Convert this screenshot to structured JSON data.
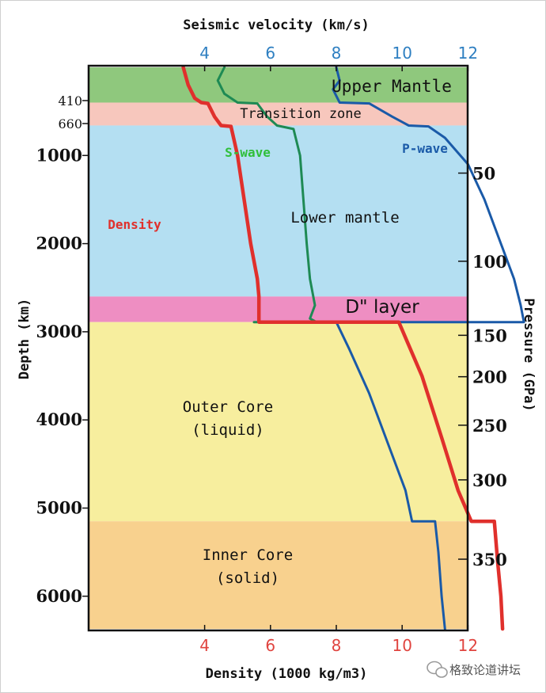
{
  "chart_data": {
    "type": "line",
    "top_axis": {
      "label": "Seismic velocity (km/s)",
      "ticks": [
        4,
        6,
        8,
        10,
        12
      ],
      "range": [
        2.5,
        14.0
      ]
    },
    "bottom_axis": {
      "label": "Density (1000 kg/m3)",
      "ticks": [
        4,
        6,
        8,
        10,
        12
      ],
      "range": [
        2.5,
        14.0
      ]
    },
    "left_axis": {
      "label": "Depth (km)",
      "ticks": [
        1000,
        2000,
        3000,
        4000,
        5000,
        6000
      ],
      "minor_ticks": [
        410,
        660
      ],
      "range": [
        0,
        6371
      ]
    },
    "right_axis": {
      "label": "Pressure (GPa)",
      "ticks": [
        {
          "value": 50,
          "depth": 1200
        },
        {
          "value": 100,
          "depth": 2200
        },
        {
          "value": 150,
          "depth": 3040
        },
        {
          "value": 200,
          "depth": 3510
        },
        {
          "value": 250,
          "depth": 4060
        },
        {
          "value": 300,
          "depth": 4680
        },
        {
          "value": 350,
          "depth": 5580
        }
      ]
    },
    "layers": [
      {
        "name": "Upper Mantle",
        "top": 0,
        "bottom": 400,
        "color": "#8fc87d"
      },
      {
        "name": "Transition zone",
        "top": 400,
        "bottom": 660,
        "color": "#f7c7bd"
      },
      {
        "name": "Lower mantle",
        "top": 660,
        "bottom": 2600,
        "color": "#b4dff2"
      },
      {
        "name": "D\" layer",
        "top": 2600,
        "bottom": 2890,
        "color": "#ee8ec2"
      },
      {
        "name": "Outer Core\n(liquid)",
        "top": 2890,
        "bottom": 5150,
        "color": "#f7ee9e"
      },
      {
        "name": "Inner Core\n(solid)",
        "top": 5150,
        "bottom": 6371,
        "color": "#f8d18e"
      }
    ],
    "series": [
      {
        "name": "P-wave",
        "axis": "top",
        "color": "#1a5aa8",
        "points": [
          [
            8.0,
            0
          ],
          [
            8.1,
            150
          ],
          [
            7.9,
            250
          ],
          [
            8.1,
            400
          ],
          [
            9.0,
            410
          ],
          [
            9.7,
            560
          ],
          [
            10.2,
            660
          ],
          [
            10.8,
            670
          ],
          [
            11.3,
            800
          ],
          [
            12.0,
            1100
          ],
          [
            12.5,
            1500
          ],
          [
            13.0,
            2000
          ],
          [
            13.4,
            2400
          ],
          [
            13.6,
            2700
          ],
          [
            13.7,
            2890
          ],
          [
            8.0,
            2890
          ],
          [
            8.4,
            3200
          ],
          [
            9.0,
            3700
          ],
          [
            9.6,
            4300
          ],
          [
            10.1,
            4800
          ],
          [
            10.3,
            5150
          ],
          [
            11.0,
            5150
          ],
          [
            11.1,
            5500
          ],
          [
            11.2,
            6000
          ],
          [
            11.3,
            6371
          ]
        ]
      },
      {
        "name": "S-wave",
        "axis": "top",
        "color": "#1e8a54",
        "points": [
          [
            4.6,
            0
          ],
          [
            4.4,
            150
          ],
          [
            4.6,
            300
          ],
          [
            5.0,
            400
          ],
          [
            5.6,
            410
          ],
          [
            5.9,
            560
          ],
          [
            6.2,
            660
          ],
          [
            6.7,
            700
          ],
          [
            6.9,
            1000
          ],
          [
            7.0,
            1500
          ],
          [
            7.1,
            2000
          ],
          [
            7.2,
            2400
          ],
          [
            7.3,
            2600
          ],
          [
            7.35,
            2700
          ],
          [
            7.2,
            2850
          ],
          [
            7.4,
            2890
          ],
          [
            5.5,
            2890
          ]
        ]
      },
      {
        "name": "Density",
        "axis": "bottom",
        "color": "#e0302c",
        "points": [
          [
            3.35,
            0
          ],
          [
            3.5,
            200
          ],
          [
            3.7,
            350
          ],
          [
            3.9,
            400
          ],
          [
            4.1,
            410
          ],
          [
            4.3,
            560
          ],
          [
            4.5,
            660
          ],
          [
            4.8,
            670
          ],
          [
            5.0,
            1000
          ],
          [
            5.2,
            1500
          ],
          [
            5.4,
            2000
          ],
          [
            5.6,
            2400
          ],
          [
            5.65,
            2600
          ],
          [
            5.65,
            2890
          ],
          [
            9.9,
            2890
          ],
          [
            10.6,
            3500
          ],
          [
            11.2,
            4200
          ],
          [
            11.7,
            4800
          ],
          [
            12.1,
            5150
          ],
          [
            12.8,
            5150
          ],
          [
            12.9,
            5600
          ],
          [
            13.0,
            6000
          ],
          [
            13.05,
            6371
          ]
        ]
      }
    ],
    "annotations": [
      "Upper Mantle",
      "Transition zone",
      "Lower mantle",
      "D\" layer",
      "Outer Core",
      "(liquid)",
      "Inner Core",
      "(solid)",
      "Density",
      "S-wave",
      "P-wave"
    ]
  },
  "watermark": {
    "text": "格致论道讲坛",
    "icon": "wechat-icon"
  }
}
